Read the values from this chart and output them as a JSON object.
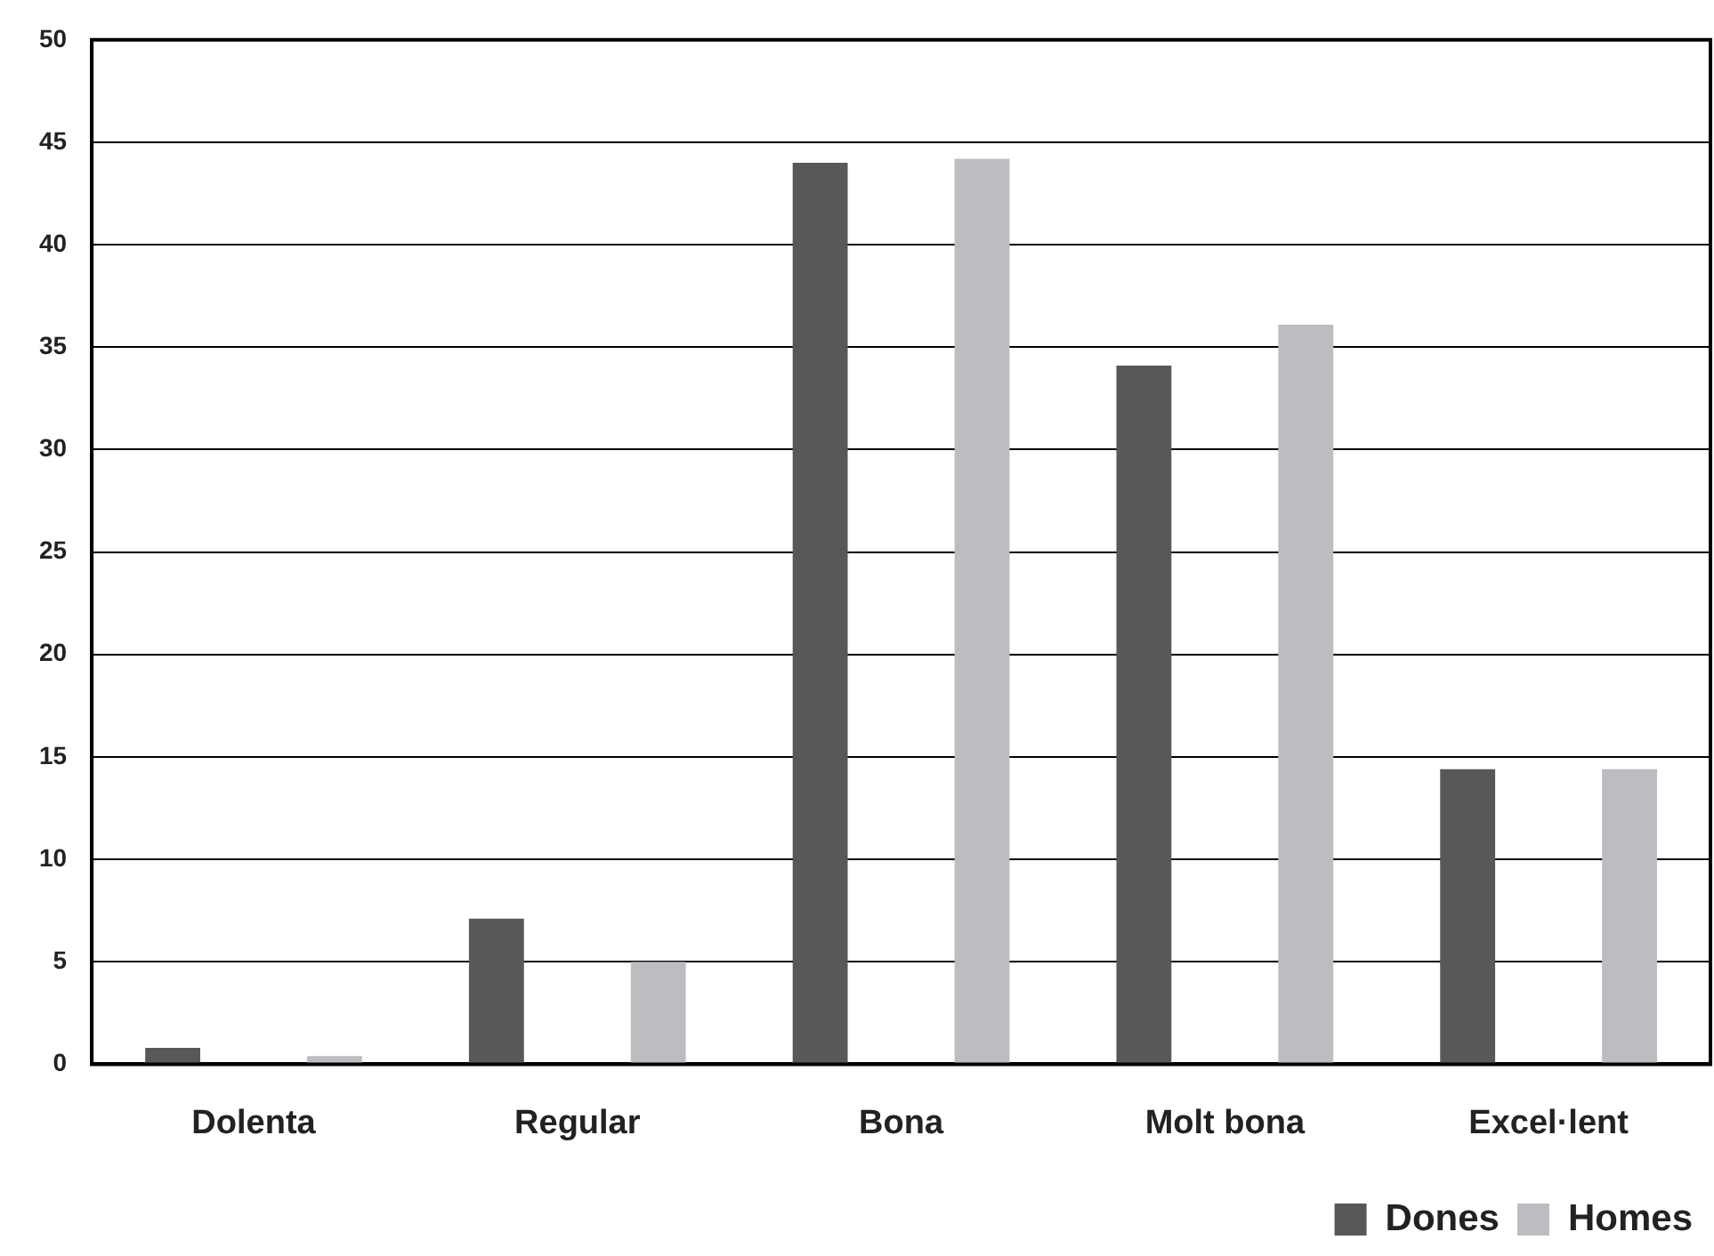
{
  "chart_data": {
    "type": "bar",
    "categories": [
      "Dolenta",
      "Regular",
      "Bona",
      "Molt bona",
      "Excel·lent"
    ],
    "series": [
      {
        "name": "Dones",
        "color": "#58585a",
        "values": [
          0.8,
          7.1,
          44.0,
          34.1,
          14.4
        ]
      },
      {
        "name": "Homes",
        "color": "#bcbdc0",
        "values": [
          0.4,
          5.0,
          44.2,
          36.1,
          14.4
        ]
      }
    ],
    "ylim": [
      0,
      50
    ],
    "yticks": [
      0,
      5,
      10,
      15,
      20,
      25,
      30,
      35,
      40,
      45,
      50
    ],
    "grid": "y",
    "legend": "bottom right"
  }
}
